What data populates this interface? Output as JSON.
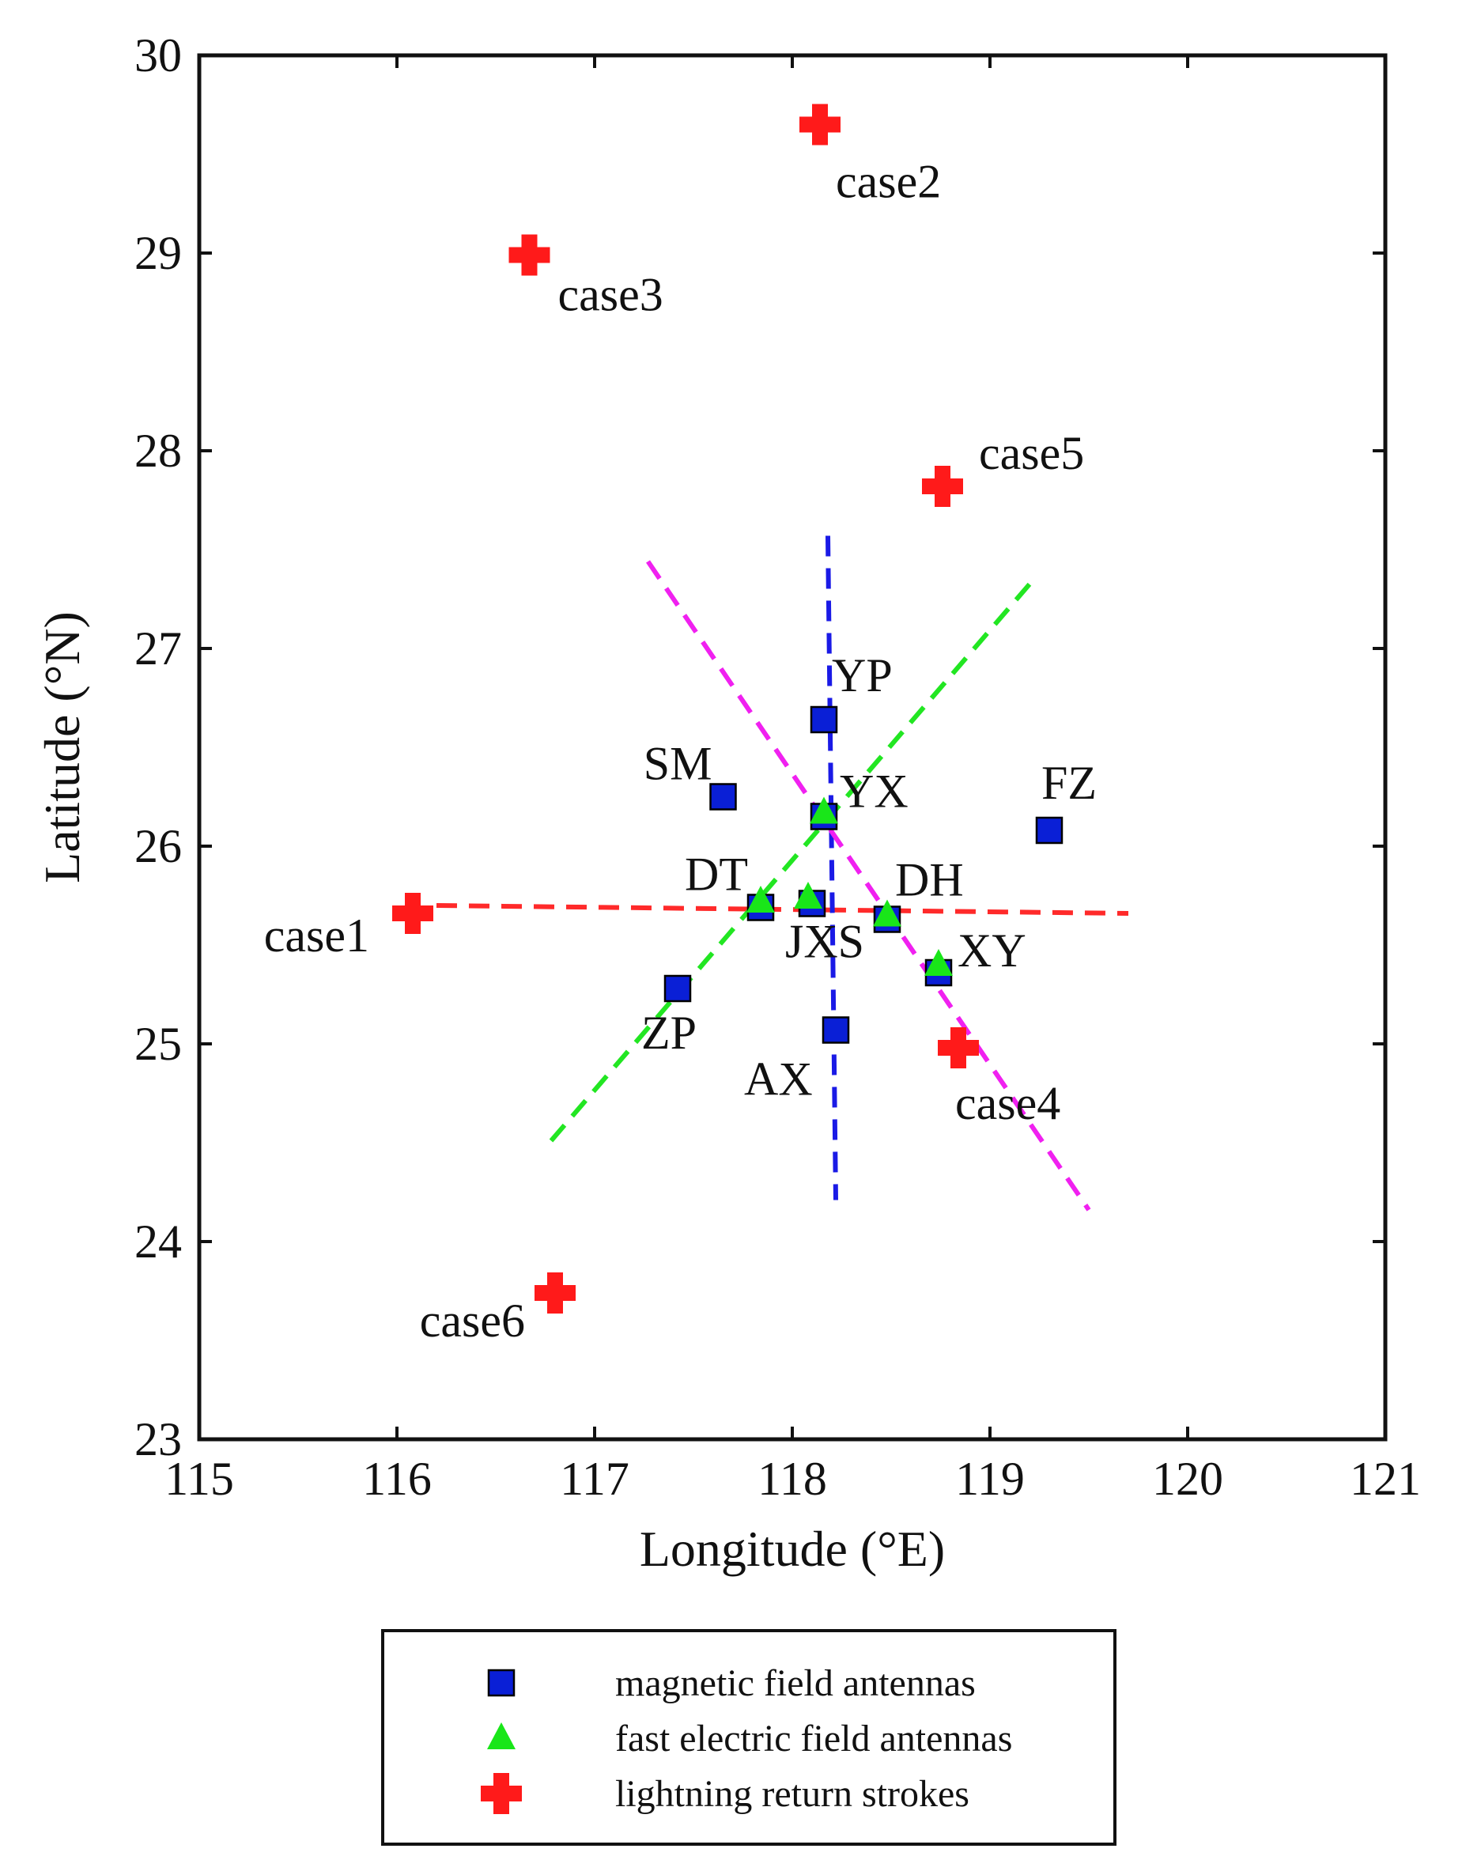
{
  "chart_data": {
    "type": "scatter",
    "xlabel": "Longitude (°E)",
    "ylabel": "Latitude (°N)",
    "xlim": [
      115,
      121
    ],
    "ylim": [
      23,
      30
    ],
    "xticks": [
      "115",
      "116",
      "117",
      "118",
      "119",
      "120",
      "121"
    ],
    "yticks": [
      "23",
      "24",
      "25",
      "26",
      "27",
      "28",
      "29",
      "30"
    ],
    "grid": false,
    "legend_position": "bottom",
    "legend": [
      {
        "symbol": "square",
        "label": "magnetic field antennas",
        "color": "#0a1fd6"
      },
      {
        "symbol": "triangle",
        "label": "fast electric field antennas",
        "color": "#19e619"
      },
      {
        "symbol": "cross",
        "label": "lightning return strokes",
        "color": "#ff1a1a"
      }
    ],
    "series": [
      {
        "name": "magnetic field antennas",
        "symbol": "square",
        "color": "#0a1fd6",
        "points": [
          {
            "label": "YP",
            "x": 118.16,
            "y": 26.64
          },
          {
            "label": "SM",
            "x": 117.65,
            "y": 26.25
          },
          {
            "label": "YX",
            "x": 118.16,
            "y": 26.15
          },
          {
            "label": "FZ",
            "x": 119.3,
            "y": 26.08
          },
          {
            "label": "DT",
            "x": 117.84,
            "y": 25.69
          },
          {
            "label": "JXS",
            "x": 118.1,
            "y": 25.71
          },
          {
            "label": "DH",
            "x": 118.48,
            "y": 25.63
          },
          {
            "label": "XY",
            "x": 118.74,
            "y": 25.36
          },
          {
            "label": "ZP",
            "x": 117.42,
            "y": 25.28
          },
          {
            "label": "AX",
            "x": 118.22,
            "y": 25.07
          }
        ]
      },
      {
        "name": "fast electric field antennas",
        "symbol": "triangle",
        "color": "#19e619",
        "points": [
          {
            "label": "YX",
            "x": 118.16,
            "y": 26.17
          },
          {
            "label": "DT",
            "x": 117.84,
            "y": 25.72
          },
          {
            "label": "JXS",
            "x": 118.08,
            "y": 25.74
          },
          {
            "label": "DH",
            "x": 118.48,
            "y": 25.65
          },
          {
            "label": "XY",
            "x": 118.74,
            "y": 25.4
          }
        ]
      },
      {
        "name": "lightning return strokes",
        "symbol": "cross",
        "color": "#ff1a1a",
        "points": [
          {
            "label": "case1",
            "x": 116.08,
            "y": 25.66
          },
          {
            "label": "case2",
            "x": 118.14,
            "y": 29.65
          },
          {
            "label": "case3",
            "x": 116.67,
            "y": 28.99
          },
          {
            "label": "case4",
            "x": 118.84,
            "y": 24.98
          },
          {
            "label": "case5",
            "x": 118.76,
            "y": 27.82
          },
          {
            "label": "case6",
            "x": 116.8,
            "y": 23.74
          }
        ]
      }
    ],
    "baselines": [
      {
        "color": "#ff2a2a",
        "from": [
          116.2,
          25.7
        ],
        "to": [
          119.7,
          25.66
        ]
      },
      {
        "color": "#1a1ae6",
        "from": [
          118.18,
          27.57
        ],
        "to": [
          118.22,
          24.21
        ]
      },
      {
        "color": "#22e622",
        "from": [
          116.78,
          24.51
        ],
        "to": [
          119.23,
          27.36
        ]
      },
      {
        "color": "#f020f0",
        "from": [
          117.27,
          27.44
        ],
        "to": [
          119.5,
          24.16
        ]
      }
    ]
  }
}
